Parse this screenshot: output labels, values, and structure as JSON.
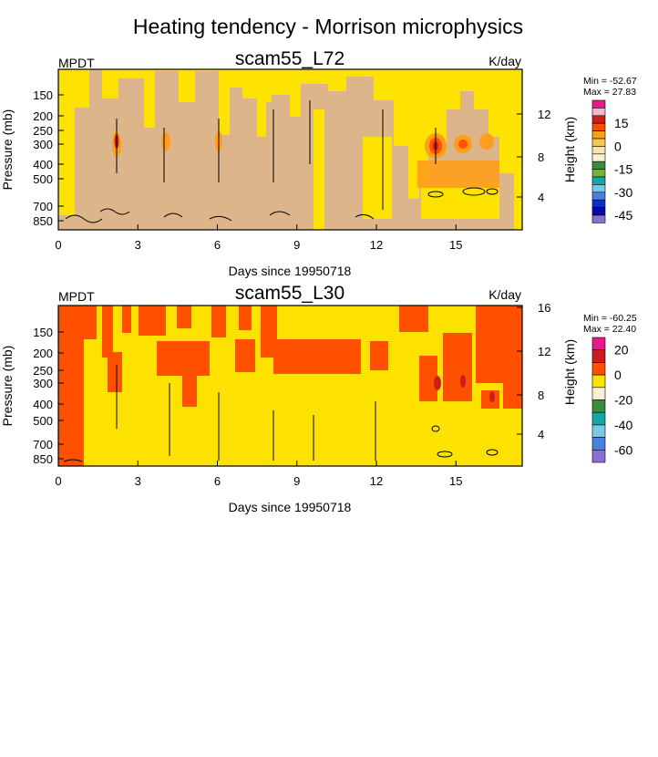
{
  "main_title": "Heating tendency - Morrison microphysics",
  "chart_data": [
    {
      "type": "heatmap",
      "title": "scam55_L72",
      "left_label": "MPDT",
      "right_label": "K/day",
      "xlabel": "Days since 19950718",
      "ylabel": "Pressure (mb)",
      "y2label": "Height (km)",
      "xlim": [
        0,
        17.5
      ],
      "xticks": [
        "0",
        "3",
        "6",
        "9",
        "12",
        "15"
      ],
      "yticks": [
        "150",
        "200",
        "250",
        "300",
        "400",
        "500",
        "700",
        "850"
      ],
      "y2ticks": [
        "4",
        "8",
        "12"
      ],
      "min_text": "Min = -52.67",
      "max_text": "Max =  27.83",
      "colorbar_labels": [
        "15",
        "0",
        "-15",
        "-30",
        "-45"
      ],
      "colorbar_colors": [
        "#e8198a",
        "#f4b8c8",
        "#c81f1f",
        "#ff5000",
        "#ff9e1a",
        "#f6c552",
        "#ffe3a5",
        "#f8f0d2",
        "#3d8b3d",
        "#74b43a",
        "#14a8a0",
        "#7ac8e8",
        "#4a7fe0",
        "#0a2fc8",
        "#0a0aa0",
        "#8a70d0"
      ],
      "background_color": "#dcb68a",
      "contour_color": "#fde200"
    },
    {
      "type": "heatmap",
      "title": "scam55_L30",
      "left_label": "MPDT",
      "right_label": "K/day",
      "xlabel": "Days since 19950718",
      "ylabel": "Pressure (mb)",
      "y2label": "Height (km)",
      "xlim": [
        0,
        17.5
      ],
      "xticks": [
        "0",
        "3",
        "6",
        "9",
        "12",
        "15"
      ],
      "yticks": [
        "150",
        "200",
        "250",
        "300",
        "400",
        "500",
        "700",
        "850"
      ],
      "y2ticks": [
        "4",
        "8",
        "12",
        "16"
      ],
      "min_text": "Min = -60.25",
      "max_text": "Max =  22.40",
      "colorbar_labels": [
        "20",
        "0",
        "-20",
        "-40",
        "-60"
      ],
      "colorbar_colors": [
        "#e8198a",
        "#c81f1f",
        "#ff5000",
        "#fde200",
        "#f8f0d2",
        "#3d8b3d",
        "#14a8a0",
        "#7ac8e8",
        "#4a7fe0",
        "#8a70d0"
      ],
      "background_color": "#fde200",
      "contour_color": "#ff5000"
    }
  ]
}
